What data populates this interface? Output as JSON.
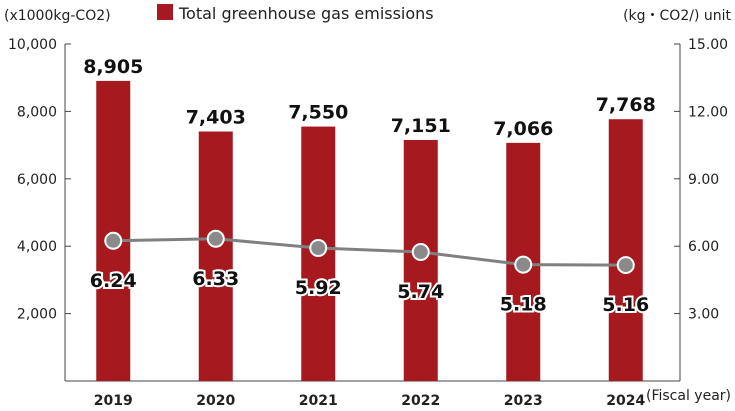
{
  "chart_data": {
    "type": "bar+line",
    "categories": [
      "2019",
      "2020",
      "2021",
      "2022",
      "2023",
      "2024"
    ],
    "series": [
      {
        "name": "Total greenhouse gas emissions",
        "type": "bar",
        "axis": "left",
        "values": [
          8905,
          7403,
          7550,
          7151,
          7066,
          7768
        ],
        "labels": [
          "8,905",
          "7,403",
          "7,550",
          "7,151",
          "7,066",
          "7,768"
        ],
        "color": "#a6191f"
      },
      {
        "type": "line",
        "axis": "right",
        "values": [
          6.24,
          6.33,
          5.92,
          5.74,
          5.18,
          5.16
        ],
        "labels": [
          "6.24",
          "6.33",
          "5.92",
          "5.74",
          "5.18",
          "5.16"
        ],
        "color": "#808080"
      }
    ],
    "left_axis": {
      "label": "(x1000kg-CO2)",
      "ylim": [
        0,
        10000
      ],
      "ticks": [
        "2,000",
        "4,000",
        "6,000",
        "8,000",
        "10,000"
      ],
      "tick_values": [
        2000,
        4000,
        6000,
        8000,
        10000
      ]
    },
    "right_axis": {
      "label": "(kg・CO2/) unit",
      "ylim": [
        0,
        15
      ],
      "ticks": [
        "3.00",
        "6.00",
        "9.00",
        "12.00",
        "15.00"
      ],
      "tick_values": [
        3,
        6,
        9,
        12,
        15
      ]
    },
    "xlabel": "(Fiscal year)",
    "legend_position": "top",
    "grid": false
  }
}
